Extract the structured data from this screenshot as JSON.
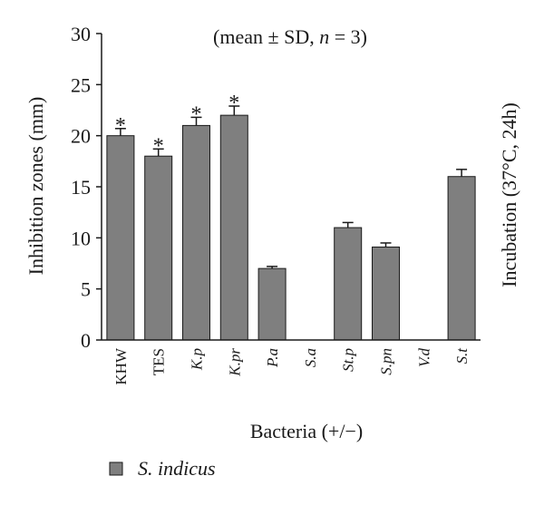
{
  "chart_data": {
    "type": "bar",
    "title": "(mean ± SD, n = 3)",
    "title_parts": [
      "(mean ± SD, ",
      "n",
      " = 3)"
    ],
    "ylabel": "Inhibition zones (mm)",
    "xlabel": "Bacteria (+/−)",
    "right_label": "Incubation (37°C, 24h)",
    "ylim": [
      0,
      30
    ],
    "yticks": [
      0,
      5,
      10,
      15,
      20,
      25,
      30
    ],
    "categories": [
      "KHW",
      "TES",
      "K.p",
      "K.pr",
      "P.a",
      "S.a",
      "St.p",
      "S.pn",
      "V.d",
      "S.t"
    ],
    "italic_categories": [
      false,
      false,
      true,
      true,
      true,
      true,
      true,
      true,
      true,
      true
    ],
    "series": [
      {
        "name": "S. indicus",
        "values": [
          20,
          18,
          21,
          22,
          7,
          0,
          11,
          9.1,
          0,
          16
        ],
        "errors": [
          0.7,
          0.7,
          0.8,
          0.9,
          0.2,
          0,
          0.5,
          0.4,
          0,
          0.7
        ],
        "significance": [
          "*",
          "*",
          "*",
          "*",
          "",
          "",
          "",
          "",
          "",
          ""
        ]
      }
    ],
    "bar_color": "#7f7f7f",
    "legend_position": "bottom-left",
    "grid": false
  }
}
